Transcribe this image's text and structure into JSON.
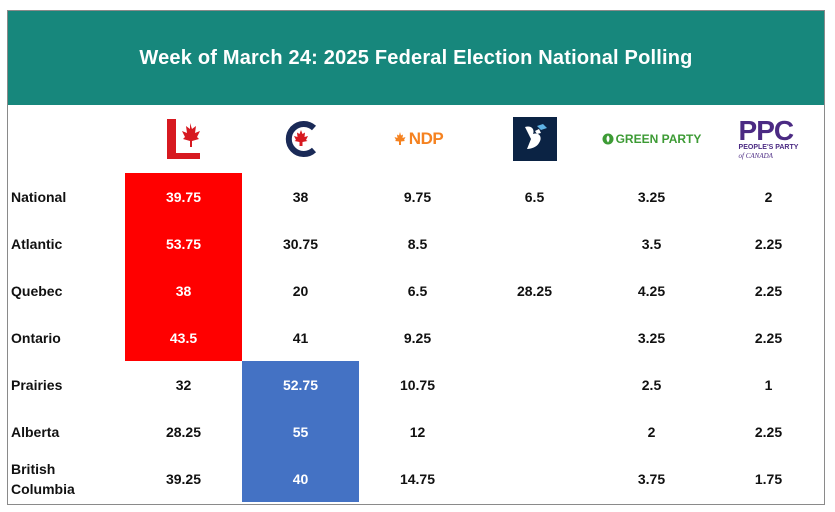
{
  "title": "Week of March 24: 2025 Federal Election National Polling",
  "parties": [
    {
      "icon": "liberal-logo-icon",
      "label": ""
    },
    {
      "icon": "conservative-logo-icon",
      "label": ""
    },
    {
      "icon": "ndp-logo-icon",
      "label": "NDP"
    },
    {
      "icon": "bloc-logo-icon",
      "label": ""
    },
    {
      "icon": "green-party-logo-icon",
      "label": "GREEN PARTY"
    },
    {
      "icon": "ppc-logo-icon",
      "label": "PPC",
      "sub1": "PEOPLE'S PARTY",
      "sub2": "of CANADA"
    }
  ],
  "colors": {
    "title_bg": "#17877c",
    "liberal_highlight": "#ff0000",
    "conservative_highlight": "#4472c4"
  },
  "chart_data": {
    "type": "table",
    "title": "Week of March 24: 2025 Federal Election National Polling",
    "columns": [
      "Liberal",
      "Conservative",
      "NDP",
      "Bloc",
      "Green Party",
      "PPC"
    ],
    "rows": [
      {
        "label": "National",
        "values": [
          "39.75",
          "38",
          "9.75",
          "6.5",
          "3.25",
          "2"
        ],
        "highlight": [
          0
        ]
      },
      {
        "label": "Atlantic",
        "values": [
          "53.75",
          "30.75",
          "8.5",
          "",
          "3.5",
          "2.25"
        ],
        "highlight": [
          0
        ]
      },
      {
        "label": "Quebec",
        "values": [
          "38",
          "20",
          "6.5",
          "28.25",
          "4.25",
          "2.25"
        ],
        "highlight": [
          0
        ]
      },
      {
        "label": "Ontario",
        "values": [
          "43.5",
          "41",
          "9.25",
          "",
          "3.25",
          "2.25"
        ],
        "highlight": [
          0
        ]
      },
      {
        "label": "Prairies",
        "values": [
          "32",
          "52.75",
          "10.75",
          "",
          "2.5",
          "1"
        ],
        "highlight": [
          1
        ]
      },
      {
        "label": "Alberta",
        "values": [
          "28.25",
          "55",
          "12",
          "",
          "2",
          "2.25"
        ],
        "highlight": [
          1
        ]
      },
      {
        "label": "British Columbia",
        "values": [
          "39.25",
          "40",
          "14.75",
          "",
          "3.75",
          "1.75"
        ],
        "highlight": [
          1
        ]
      }
    ]
  }
}
